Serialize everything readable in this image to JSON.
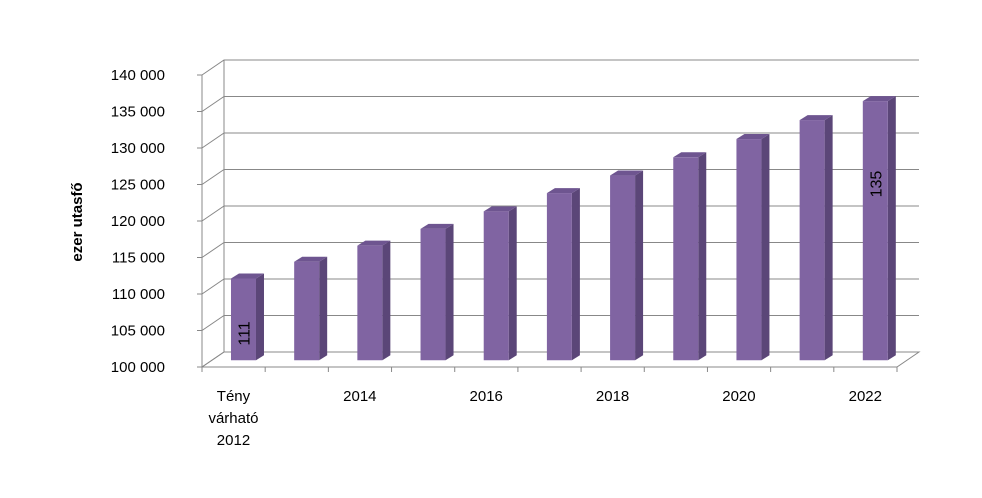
{
  "chart_data": {
    "type": "bar",
    "title": "",
    "xlabel": "",
    "ylabel": "ezer utasfő",
    "ylim": [
      100000,
      140000
    ],
    "y_ticks": [
      "100 000",
      "105 000",
      "110 000",
      "115 000",
      "120 000",
      "125 000",
      "130 000",
      "135 000",
      "140 000"
    ],
    "categories": [
      "Tény várható 2012",
      "2013",
      "2014",
      "2015",
      "2016",
      "2017",
      "2018",
      "2019",
      "2020",
      "2021",
      "2022"
    ],
    "x_tick_labels": [
      [
        "Tény",
        "várható",
        "2012"
      ],
      [],
      [
        "2014"
      ],
      [],
      [
        "2016"
      ],
      [],
      [
        "2018"
      ],
      [],
      [
        "2020"
      ],
      [],
      [
        "2022"
      ]
    ],
    "values": [
      111200,
      113500,
      115700,
      118000,
      120400,
      122900,
      125300,
      127800,
      130300,
      132900,
      135500
    ],
    "data_labels": [
      "111",
      "",
      "",
      "",
      "",
      "",
      "",
      "",
      "",
      "",
      "135"
    ],
    "bar_color": "#8064a2",
    "grid": true,
    "legend": "none",
    "projection": "3d"
  }
}
